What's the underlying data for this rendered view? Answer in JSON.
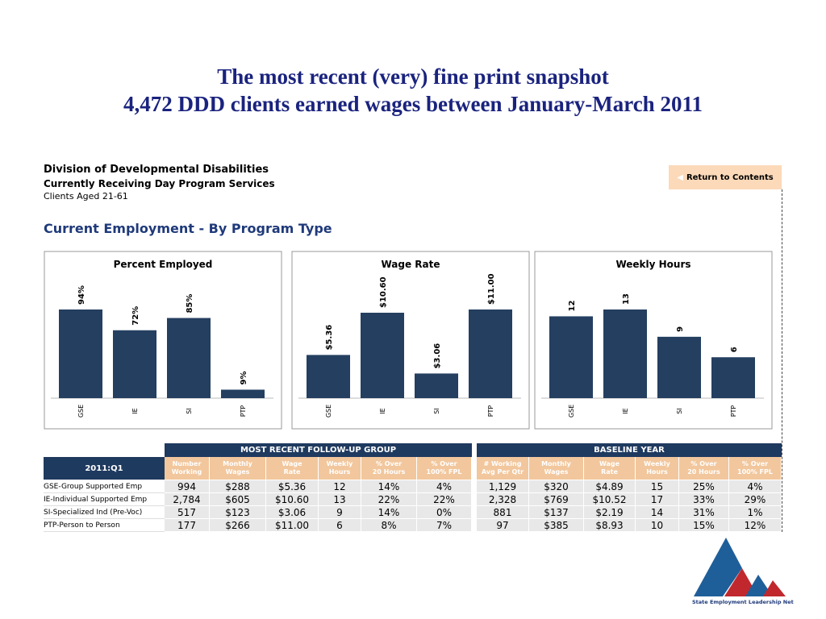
{
  "header": {
    "title_line1": "The most recent (very) fine print snapshot",
    "title_line2": "4,472 DDD clients earned wages between January-March 2011"
  },
  "org": {
    "line1": "Division of Developmental Disabilities",
    "line2": "Currently Receiving Day Program Services",
    "line3": "Clients Aged 21-61"
  },
  "section_title": "Current Employment - By Program Type",
  "button": "Return to Contents",
  "chart_data": [
    {
      "type": "bar",
      "title": "Percent Employed",
      "categories": [
        "GSE",
        "IE",
        "SI",
        "PTP"
      ],
      "values": [
        94,
        72,
        85,
        9
      ],
      "value_labels": [
        "94%",
        "72%",
        "85%",
        "9%"
      ],
      "color": "#243f60"
    },
    {
      "type": "bar",
      "title": "Wage Rate",
      "categories": [
        "GSE",
        "IE",
        "SI",
        "PTP"
      ],
      "values": [
        5.36,
        10.6,
        3.06,
        11
      ],
      "value_labels": [
        "$5.36",
        "$10.60",
        "$3.06",
        "$11.00"
      ],
      "color": "#243f60"
    },
    {
      "type": "bar",
      "title": "Weekly Hours",
      "categories": [
        "GSE",
        "IE",
        "SI",
        "PTP"
      ],
      "values": [
        12,
        13,
        9,
        6
      ],
      "color": "#243f60"
    }
  ],
  "table": {
    "group_headers": [
      "MOST RECENT FOLLOW-UP GROUP",
      "BASELINE YEAR"
    ],
    "corner": "2011:Q1",
    "recent_columns": [
      [
        "Number",
        "Working"
      ],
      [
        "Monthly",
        "Wages"
      ],
      [
        "Wage",
        "Rate"
      ],
      [
        "Weekly",
        "Hours"
      ],
      [
        "% Over",
        "20 Hours"
      ],
      [
        "% Over",
        "100% FPL"
      ]
    ],
    "baseline_columns": [
      [
        "# Working",
        "Avg Per Qtr"
      ],
      [
        "Monthly",
        "Wages"
      ],
      [
        "Wage",
        "Rate"
      ],
      [
        "Weekly",
        "Hours"
      ],
      [
        "% Over",
        "20 Hours"
      ],
      [
        "% Over",
        "100% FPL"
      ]
    ],
    "rows": [
      {
        "label": "GSE-Group Supported Emp",
        "recent": [
          "994",
          "$288",
          "$5.36",
          "12",
          "14%",
          "4%"
        ],
        "baseline": [
          "1,129",
          "$320",
          "$4.89",
          "15",
          "25%",
          "4%"
        ]
      },
      {
        "label": "IE-Individual Supported Emp",
        "recent": [
          "2,784",
          "$605",
          "$10.60",
          "13",
          "22%",
          "22%"
        ],
        "baseline": [
          "2,328",
          "$769",
          "$10.52",
          "17",
          "33%",
          "29%"
        ]
      },
      {
        "label": "SI-Specialized Ind (Pre-Voc)",
        "recent": [
          "517",
          "$123",
          "$3.06",
          "9",
          "14%",
          "0%"
        ],
        "baseline": [
          "881",
          "$137",
          "$2.19",
          "14",
          "31%",
          "1%"
        ]
      },
      {
        "label": "PTP-Person to Person",
        "recent": [
          "177",
          "$266",
          "$11.00",
          "6",
          "8%",
          "7%"
        ],
        "baseline": [
          "97",
          "$385",
          "$8.93",
          "10",
          "15%",
          "12%"
        ]
      }
    ]
  },
  "logo": {
    "text": "State Employment Leadership Network"
  }
}
